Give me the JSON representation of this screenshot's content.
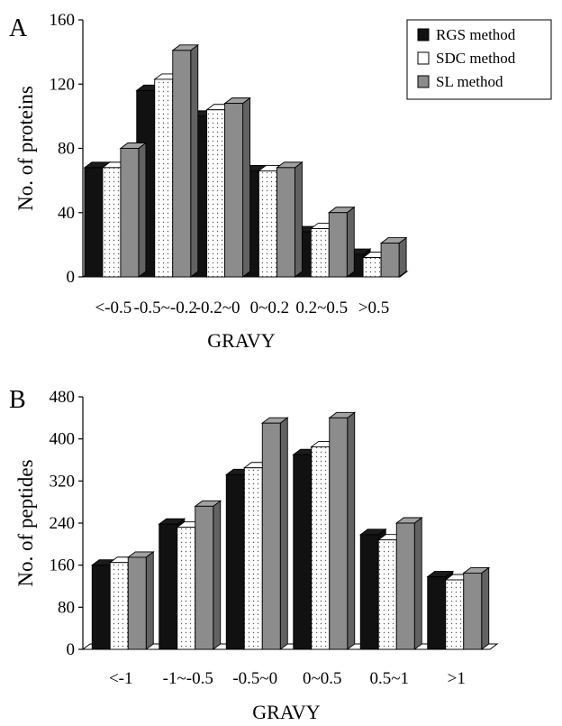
{
  "colors": {
    "rgs": "#111111",
    "sdc": "#ffffff",
    "sl": "#8c8c8c"
  },
  "chart_data": [
    {
      "type": "bar",
      "panel_label": "A",
      "title": "",
      "xlabel": "GRAVY",
      "ylabel": "No. of proteins",
      "ylim": [
        0,
        160
      ],
      "yticks": [
        0,
        40,
        80,
        120,
        160
      ],
      "categories": [
        "<-0.5",
        "-0.5~-0.2",
        "-0.2~0",
        "0~0.2",
        "0.2~0.5",
        ">0.5"
      ],
      "series": [
        {
          "name": "RGS method",
          "values": [
            68,
            116,
            100,
            66,
            28,
            14
          ]
        },
        {
          "name": "SDC method",
          "values": [
            68,
            123,
            104,
            66,
            30,
            12
          ]
        },
        {
          "name": "SL method",
          "values": [
            80,
            141,
            108,
            68,
            40,
            21
          ]
        }
      ],
      "legend_position": "top-right",
      "grid": false
    },
    {
      "type": "bar",
      "panel_label": "B",
      "title": "",
      "xlabel": "GRAVY",
      "ylabel": "No. of peptides",
      "ylim": [
        0,
        480
      ],
      "yticks": [
        0,
        80,
        160,
        240,
        320,
        400,
        480
      ],
      "categories": [
        "<-1",
        "-1~-0.5",
        "-0.5~0",
        "0~0.5",
        "0.5~1",
        ">1"
      ],
      "series": [
        {
          "name": "RGS method",
          "values": [
            160,
            238,
            332,
            370,
            218,
            138
          ]
        },
        {
          "name": "SDC method",
          "values": [
            165,
            232,
            345,
            385,
            208,
            132
          ]
        },
        {
          "name": "SL method",
          "values": [
            175,
            272,
            430,
            440,
            240,
            145
          ]
        }
      ],
      "grid": false
    }
  ]
}
